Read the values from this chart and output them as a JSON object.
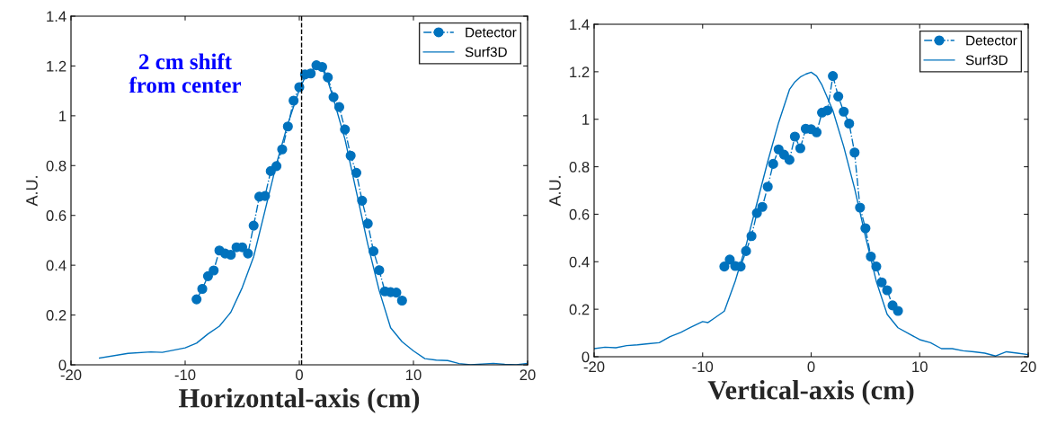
{
  "chart_data": [
    {
      "type": "line",
      "xlabel": "Horizontal-axis (cm)",
      "ylabel": "A.U.",
      "annotations": [
        "2 cm shift\nfrom center"
      ],
      "xlim": [
        -20,
        20
      ],
      "xticks": [
        -20,
        -10,
        0,
        10,
        20
      ],
      "ylim": [
        0,
        1.4
      ],
      "yticks": [
        0,
        0.2,
        0.4,
        0.6,
        0.8,
        1,
        1.2,
        1.4
      ],
      "legend": "top right",
      "grid": false,
      "ref_lines": [
        {
          "axis": "x",
          "value": 0.2,
          "color": "#000000",
          "line_style": "dashed"
        }
      ],
      "series": [
        {
          "name": "Detector",
          "color": "#0072bd",
          "marker": "circle",
          "line_style": "dashdot",
          "x": [
            -9,
            -8.5,
            -8,
            -7.5,
            -7,
            -6.5,
            -6,
            -5.5,
            -5,
            -4.5,
            -4,
            -3.5,
            -3,
            -2.5,
            -2,
            -1.5,
            -1,
            -0.5,
            0,
            0.5,
            1,
            1.5,
            2,
            2.5,
            3,
            3.5,
            4,
            4.5,
            5,
            5.5,
            6,
            6.5,
            7,
            7.5,
            8,
            8.5,
            9
          ],
          "values": [
            0.263,
            0.305,
            0.356,
            0.379,
            0.459,
            0.447,
            0.442,
            0.472,
            0.472,
            0.447,
            0.559,
            0.675,
            0.678,
            0.778,
            0.798,
            0.865,
            0.957,
            1.061,
            1.115,
            1.166,
            1.17,
            1.203,
            1.196,
            1.154,
            1.075,
            1.035,
            0.945,
            0.84,
            0.771,
            0.659,
            0.567,
            0.456,
            0.38,
            0.295,
            0.292,
            0.29,
            0.258
          ]
        },
        {
          "name": "Surf3D",
          "color": "#0072bd",
          "marker": "none",
          "line_style": "solid",
          "x": [
            -17.5,
            -15,
            -13,
            -12,
            -10,
            -9,
            -8,
            -7,
            -6,
            -5,
            -4,
            -3,
            -2,
            -1,
            0,
            0.5,
            1,
            1.5,
            2,
            2.5,
            3,
            4,
            5,
            6,
            7,
            8,
            9,
            10,
            11,
            12,
            13,
            14,
            15,
            17,
            18,
            19,
            20
          ],
          "values": [
            0.027,
            0.046,
            0.052,
            0.05,
            0.068,
            0.087,
            0.124,
            0.155,
            0.211,
            0.31,
            0.434,
            0.62,
            0.807,
            0.968,
            1.105,
            1.154,
            1.18,
            1.198,
            1.19,
            1.14,
            1.067,
            0.906,
            0.695,
            0.484,
            0.298,
            0.149,
            0.093,
            0.056,
            0.025,
            0.019,
            0.017,
            0.005,
            0,
            0.006,
            0.002,
            0,
            0.006
          ]
        }
      ]
    },
    {
      "type": "line",
      "xlabel": "Vertical-axis (cm)",
      "ylabel": "A.U.",
      "xlim": [
        -20,
        20
      ],
      "xticks": [
        -20,
        -10,
        0,
        10,
        20
      ],
      "ylim": [
        0,
        1.4
      ],
      "yticks": [
        0,
        0.2,
        0.4,
        0.6,
        0.8,
        1,
        1.2,
        1.4
      ],
      "legend": "top right",
      "grid": false,
      "series": [
        {
          "name": "Detector",
          "color": "#0072bd",
          "marker": "circle",
          "line_style": "dashdot",
          "x": [
            -8,
            -7.5,
            -7,
            -6.5,
            -6,
            -5.5,
            -5,
            -4.5,
            -4,
            -3.5,
            -3,
            -2.5,
            -2,
            -1.5,
            -1,
            -0.5,
            0,
            0.5,
            1,
            1.5,
            2,
            2.5,
            3,
            3.5,
            4,
            4.5,
            5,
            5.5,
            6,
            6.5,
            7,
            7.5,
            8
          ],
          "values": [
            0.38,
            0.409,
            0.382,
            0.38,
            0.445,
            0.508,
            0.605,
            0.631,
            0.716,
            0.812,
            0.873,
            0.851,
            0.829,
            0.927,
            0.878,
            0.96,
            0.958,
            0.945,
            1.028,
            1.037,
            1.182,
            1.096,
            1.032,
            0.982,
            0.86,
            0.628,
            0.541,
            0.422,
            0.38,
            0.313,
            0.28,
            0.216,
            0.193
          ]
        },
        {
          "name": "Surf3D",
          "color": "#0072bd",
          "marker": "none",
          "line_style": "solid",
          "x": [
            -20,
            -19,
            -18,
            -17,
            -16,
            -15,
            -14,
            -13,
            -12,
            -11,
            -10,
            -9.5,
            -9,
            -8,
            -7,
            -6,
            -5,
            -4,
            -3,
            -2,
            -1.5,
            -1,
            -0.5,
            0,
            0.5,
            1,
            2,
            3,
            4,
            5,
            6,
            7,
            8,
            9,
            10,
            11,
            12,
            13,
            14,
            15,
            16,
            17,
            18,
            19,
            20
          ],
          "values": [
            0.034,
            0.04,
            0.038,
            0.047,
            0.05,
            0.055,
            0.059,
            0.085,
            0.103,
            0.126,
            0.148,
            0.144,
            0.16,
            0.192,
            0.318,
            0.469,
            0.646,
            0.822,
            0.986,
            1.125,
            1.157,
            1.178,
            1.19,
            1.198,
            1.182,
            1.144,
            1.037,
            0.885,
            0.709,
            0.507,
            0.318,
            0.179,
            0.122,
            0.097,
            0.072,
            0.059,
            0.034,
            0.034,
            0.025,
            0.021,
            0.015,
            0.003,
            0.021,
            0.015,
            0.009
          ]
        }
      ]
    }
  ]
}
